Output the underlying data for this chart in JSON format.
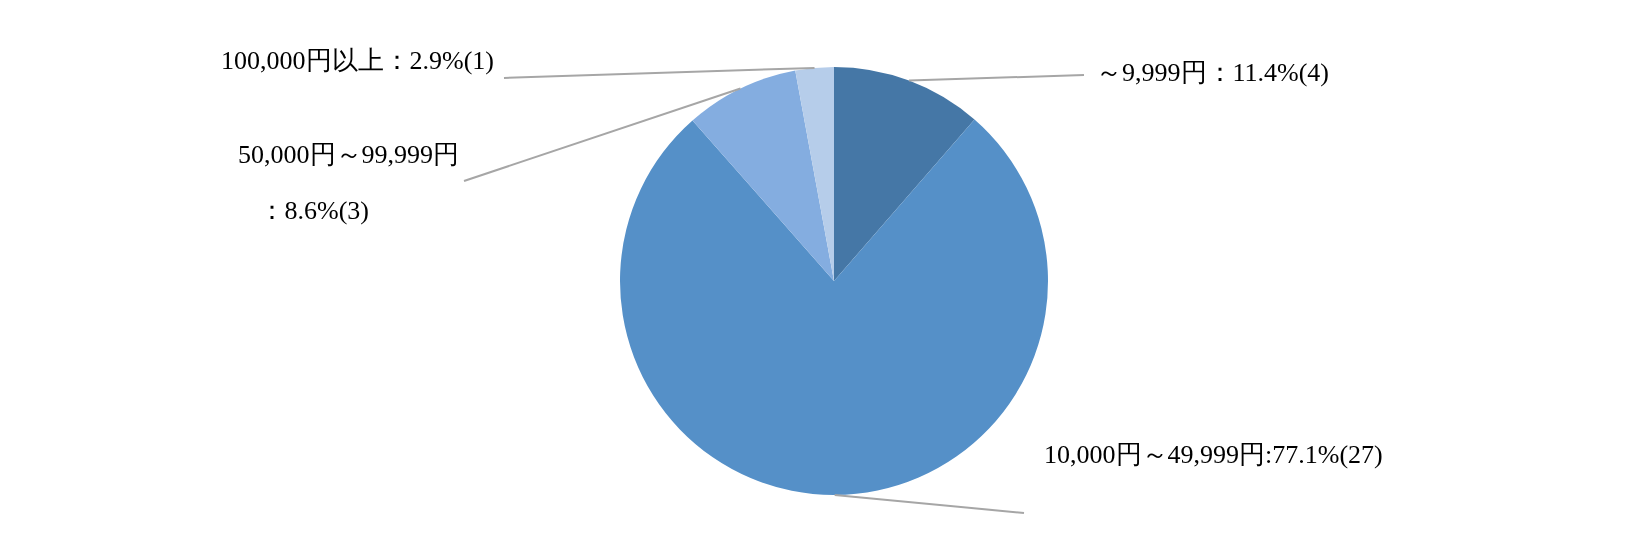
{
  "chart_data": {
    "type": "pie",
    "categories": [
      "～9,999円",
      "10,000円～49,999円",
      "50,000円～99,999円",
      "100,000円以上"
    ],
    "values": [
      11.4,
      77.1,
      8.6,
      2.9
    ],
    "value_labels": [
      "：11.4%(4)",
      ":77.1%(27)",
      "：8.6%(3)",
      "：2.9%(1)"
    ],
    "colors": [
      "#4577a6",
      "#5590c8",
      "#84ade0",
      "#b6cdea"
    ],
    "legend": false
  }
}
